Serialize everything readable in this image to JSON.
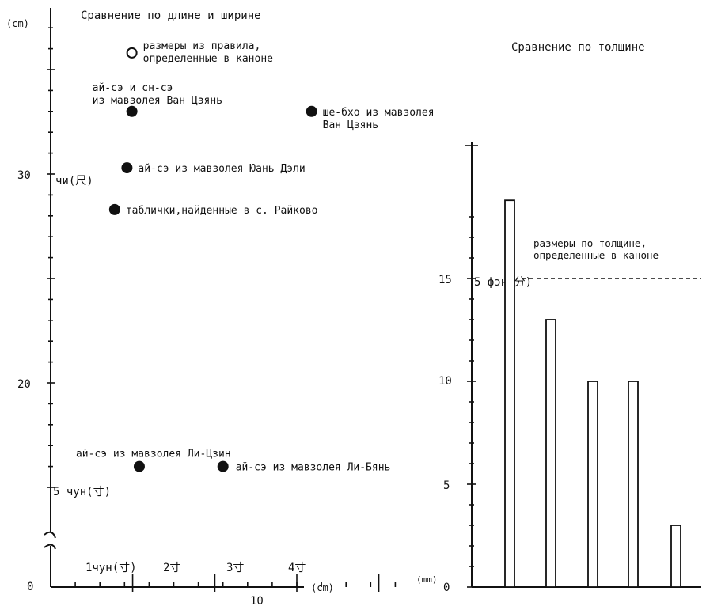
{
  "chart_data": [
    {
      "type": "scatter",
      "title": "Сравнение по длине и ширине",
      "unit_y": "(cm)",
      "unit_x": "(cm)",
      "y_tick_labels": [
        {
          "label": "0",
          "value": 0
        },
        {
          "label": "20",
          "value": 20
        },
        {
          "label": "30",
          "value": 30
        }
      ],
      "y_unit_labels": [
        {
          "label": "чи(尺)",
          "value": 30
        },
        {
          "label": "5 чун(寸)",
          "value": 15
        }
      ],
      "x_tick_labels": [
        {
          "label": "10",
          "value": 10
        }
      ],
      "x_unit_labels": [
        {
          "label": "1чун(寸)",
          "value": 3.33
        },
        {
          "label": "2寸",
          "value": 6.67
        },
        {
          "label": "3寸",
          "value": 10
        },
        {
          "label": "4寸",
          "value": 13.33
        }
      ],
      "x_range": [
        0,
        14.5
      ],
      "y_break": true,
      "points": [
        {
          "label": "размеры из правила,\nопределенные в каноне",
          "x": 3.3,
          "y": 35.8,
          "filled": false
        },
        {
          "label": "ай-сэ и сн-сэ\nиз мавзолея Ван Цзянь",
          "x": 3.3,
          "y": 33.0,
          "filled": true
        },
        {
          "label": "ше-бхо из мавзолея\nВан Цзянь",
          "x": 10.6,
          "y": 33.0,
          "filled": true
        },
        {
          "label": "ай-сэ из мавзолея Юань Дэли",
          "x": 3.1,
          "y": 30.3,
          "filled": true
        },
        {
          "label": "таблички,найденные в с. Райково",
          "x": 2.6,
          "y": 28.3,
          "filled": true
        },
        {
          "label": "ай-сэ из мавзолея Ли-Цзин",
          "x": 3.6,
          "y": 16.0,
          "filled": true
        },
        {
          "label": "ай-сэ из мавзолея Ли-Бянь",
          "x": 7.0,
          "y": 16.0,
          "filled": true
        }
      ]
    },
    {
      "type": "bar",
      "title": "Сравнение по толщине",
      "unit_y": "(mm)",
      "y_tick_labels": [
        "0",
        "5",
        "10",
        "15"
      ],
      "ylim": [
        0,
        18.5
      ],
      "values": [
        18.8,
        13.0,
        10.0,
        10.0,
        3.0
      ],
      "category_labels": [
        "",
        "",
        "",
        "",
        ""
      ],
      "reference": {
        "value": 15,
        "label": "размеры по толщине,\nопределенные в каноне",
        "unit_label": "5 фэн(分)"
      }
    }
  ]
}
